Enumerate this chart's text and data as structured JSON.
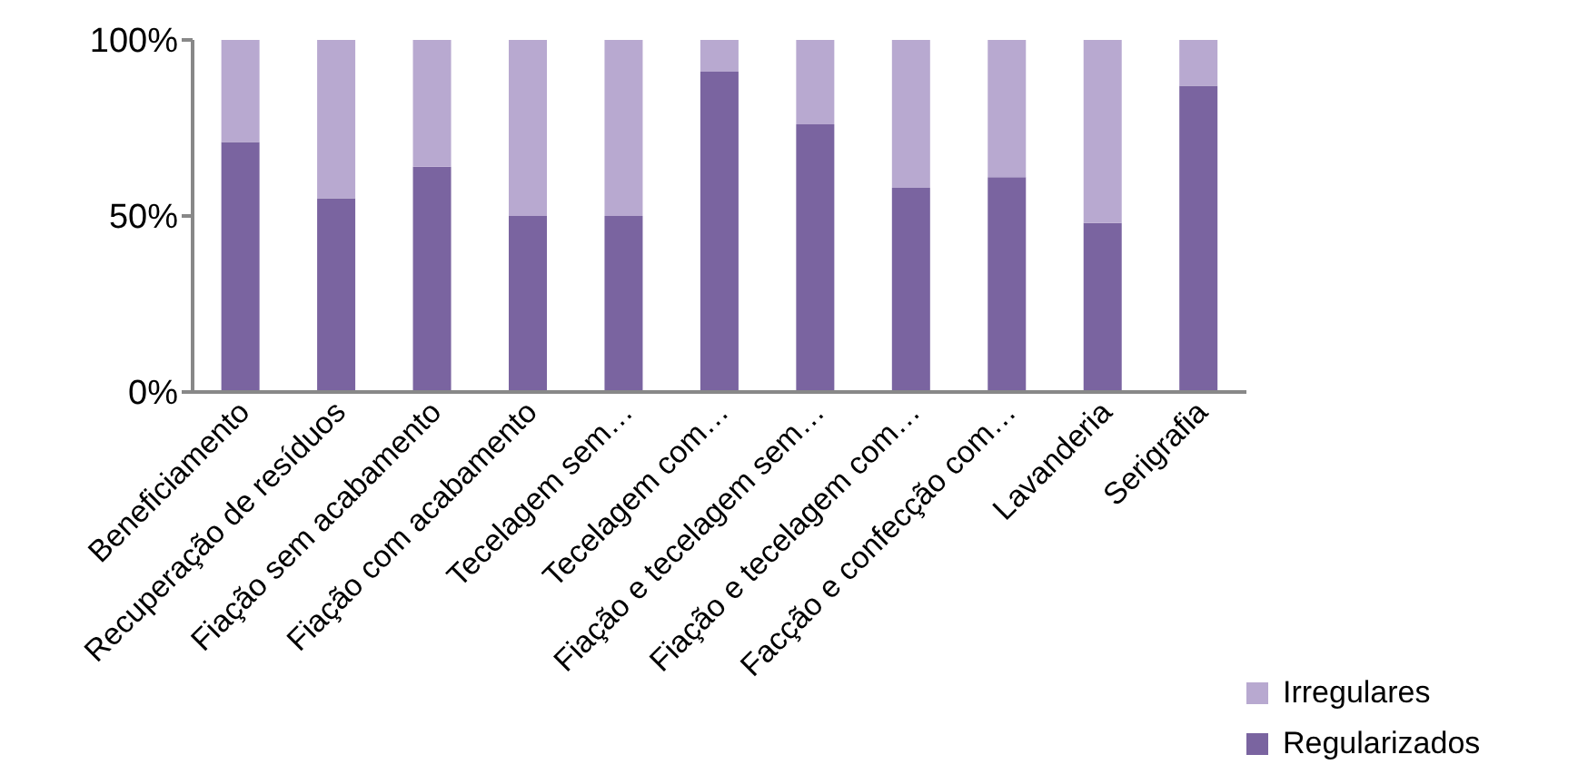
{
  "chart_data": {
    "type": "bar",
    "stacked": true,
    "categories": [
      "Beneficiamento",
      "Recuperação de resíduos",
      "Fiação sem acabamento",
      "Fiação com acabamento",
      "Tecelagem sem…",
      "Tecelagem com…",
      "Fiação e tecelagem sem…",
      "Fiação e tecelagem com…",
      "Facção e confecção com…",
      "Lavanderia",
      "Serigrafia"
    ],
    "series": [
      {
        "name": "Regularizados",
        "color": "#7a64a0",
        "values": [
          71,
          55,
          64,
          50,
          50,
          91,
          76,
          58,
          61,
          48,
          87
        ]
      },
      {
        "name": "Irregulares",
        "color": "#b8a9d0",
        "values": [
          29,
          45,
          36,
          50,
          50,
          9,
          24,
          42,
          39,
          52,
          13
        ]
      }
    ],
    "ylim": [
      0,
      100
    ],
    "yticks": [
      {
        "value": 0,
        "label": "0%"
      },
      {
        "value": 50,
        "label": "50%"
      },
      {
        "value": 100,
        "label": "100%"
      }
    ],
    "grid": false,
    "legend": "bottom right"
  }
}
